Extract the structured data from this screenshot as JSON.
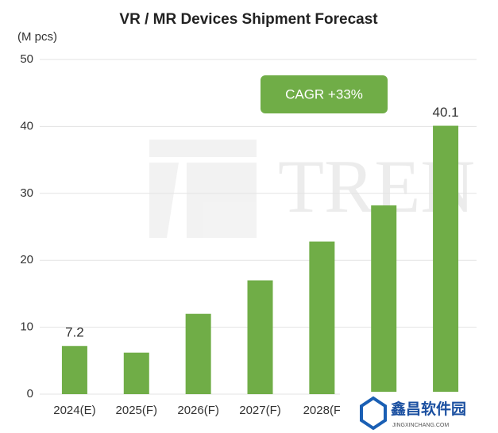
{
  "chart_data": {
    "type": "bar",
    "title": "VR / MR Devices Shipment Forecast",
    "y_axis_label": "(M pcs)",
    "categories": [
      "2024(E)",
      "2025(F)",
      "2026(F)",
      "2027(F)",
      "2028(F",
      null,
      null
    ],
    "values": [
      7.2,
      6.2,
      12,
      17,
      22.8,
      28.2,
      40.1
    ],
    "value_labels": [
      "7.2",
      null,
      null,
      null,
      null,
      null,
      "40.1"
    ],
    "color": "#70ad47",
    "ylim": [
      0,
      50
    ],
    "yticks": [
      0,
      10,
      20,
      30,
      40,
      50
    ],
    "grid": true,
    "annotation": "CAGR +33%",
    "watermarks": [
      "TREN",
      "鑫昌软件园",
      "JINGXINCHANG.COM"
    ]
  }
}
